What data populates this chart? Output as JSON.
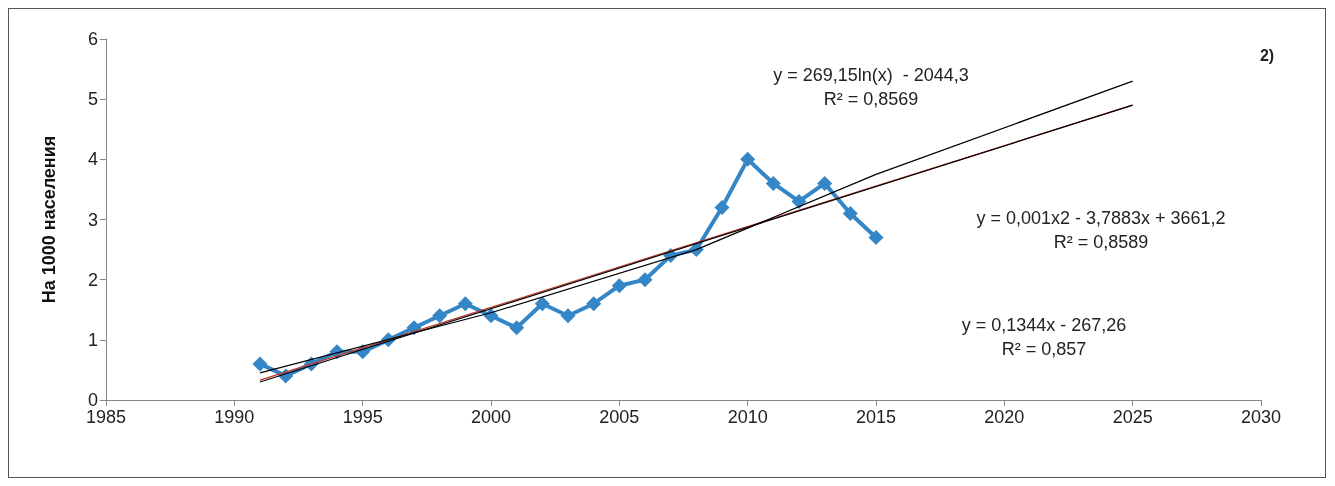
{
  "chart_data": {
    "type": "line",
    "ylabel": "На 1000 населения",
    "xlim": [
      1985,
      2030
    ],
    "xticks": [
      1985,
      1990,
      1995,
      2000,
      2005,
      2010,
      2015,
      2020,
      2025,
      2030
    ],
    "ylim": [
      0,
      6
    ],
    "yticks": [
      0,
      1,
      2,
      3,
      4,
      5,
      6
    ],
    "grid": false,
    "series": [
      {
        "color": "#3586c6",
        "marker": "diamond",
        "x": [
          1991,
          1992,
          1993,
          1994,
          1995,
          1996,
          1997,
          1998,
          1999,
          2000,
          2001,
          2002,
          2003,
          2004,
          2005,
          2006,
          2007,
          2008,
          2009,
          2010,
          2011,
          2012,
          2013,
          2014,
          2015
        ],
        "values": [
          0.6,
          0.4,
          0.6,
          0.8,
          0.8,
          1.0,
          1.2,
          1.4,
          1.6,
          1.4,
          1.2,
          1.6,
          1.4,
          1.6,
          1.9,
          2.0,
          2.4,
          2.5,
          3.2,
          4.0,
          3.6,
          3.3,
          3.6,
          3.1,
          2.7
        ]
      },
      {
        "color": "#c0392b",
        "marker": "none",
        "x": [
          1991,
          2025
        ],
        "values": [
          0.33,
          4.9
        ]
      },
      {
        "color": "#000000",
        "marker": "none",
        "x": [
          1991,
          2025
        ],
        "values": [
          0.3,
          4.9
        ]
      },
      {
        "color": "#000000",
        "marker": "none",
        "x": [
          1991,
          2000,
          2008,
          2015,
          2025
        ],
        "values": [
          0.45,
          1.45,
          2.5,
          3.75,
          5.3
        ]
      }
    ],
    "annotations": [
      "y = 269,15ln(x)  - 2044,3\nR² = 0,8569",
      "y = 0,001x2 - 3,7883x + 3661,2\nR² = 0,8589",
      "y = 0,1344x - 267,26\nR² = 0,857",
      "2)"
    ]
  }
}
